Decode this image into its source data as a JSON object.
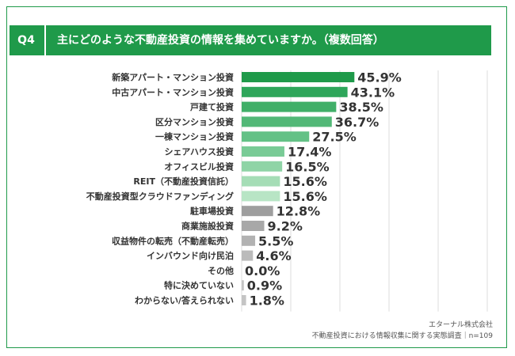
{
  "header": {
    "q_label": "Q4",
    "question": "主にどのような不動産投資の情報を集めていますか。（複数回答）"
  },
  "source": {
    "company": "エターナル株式会社",
    "survey": "不動産投資における情報収集に関する実態調査｜n=109"
  },
  "colors": {
    "brand": "#1f9a4a",
    "grid": "#dddddd"
  },
  "chart_data": {
    "type": "bar",
    "orientation": "horizontal",
    "unit": "%",
    "xlim": [
      0,
      100
    ],
    "grid": true,
    "categories": [
      "新築アパート・マンション投資",
      "中古アパート・マンション投資",
      "戸建て投資",
      "区分マンション投資",
      "一棟マンション投資",
      "シェアハウス投資",
      "オフィスビル投資",
      "REIT（不動産投資信託）",
      "不動産投資型クラウドファンディング",
      "駐車場投資",
      "商業施設投資",
      "収益物件の転売（不動産転売）",
      "インバウンド向け民泊",
      "その他",
      "特に決めていない",
      "わからない/答えられない"
    ],
    "values": [
      45.9,
      43.1,
      38.5,
      36.7,
      27.5,
      17.4,
      16.5,
      15.6,
      15.6,
      12.8,
      9.2,
      5.5,
      4.6,
      0.0,
      0.9,
      1.8
    ],
    "value_labels": [
      "45.9%",
      "43.1%",
      "38.5%",
      "36.7%",
      "27.5%",
      "17.4%",
      "16.5%",
      "15.6%",
      "15.6%",
      "12.8%",
      "9.2%",
      "5.5%",
      "4.6%",
      "0.0%",
      "0.9%",
      "1.8%"
    ],
    "bar_colors": [
      "#1f9a4a",
      "#2ea65a",
      "#40af68",
      "#52b877",
      "#63c186",
      "#79cb96",
      "#8fd4a6",
      "#a5ddb6",
      "#b8e5c5",
      "#9e9e9e",
      "#a8a8a8",
      "#b2b2b2",
      "#bbbbbb",
      "#c4c4c4",
      "#c4c4c4",
      "#c4c4c4"
    ]
  }
}
